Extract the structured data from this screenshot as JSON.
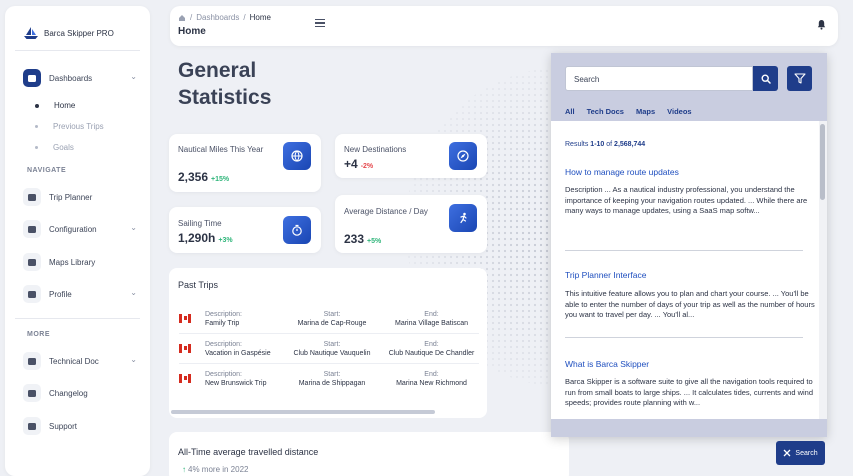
{
  "brand": {
    "name": "Barca Skipper PRO"
  },
  "sidebar": {
    "dashboards": {
      "label": "Dashboards",
      "icon": "dashboard-icon"
    },
    "sub_items": [
      "Home",
      "Previous Trips",
      "Goals"
    ],
    "navigate_section": "NAVIGATE",
    "navigate_items": [
      {
        "label": "Trip Planner",
        "icon": "map-icon"
      },
      {
        "label": "Configuration",
        "icon": "wrench-icon"
      },
      {
        "label": "Maps Library",
        "icon": "library-icon"
      },
      {
        "label": "Profile",
        "icon": "profile-icon"
      }
    ],
    "more_section": "MORE",
    "more_items": [
      {
        "label": "Technical Doc",
        "icon": "rocket-icon"
      },
      {
        "label": "Changelog",
        "icon": "changelog-icon"
      },
      {
        "label": "Support",
        "icon": "support-icon"
      }
    ]
  },
  "header": {
    "breadcrumb": [
      "Dashboards",
      "Home"
    ],
    "separator": "/",
    "page_title": "Home"
  },
  "main": {
    "title_line1": "General",
    "title_line2": "Statistics",
    "stats": [
      {
        "label": "Nautical Miles This Year",
        "value": "2,356",
        "change": "+15%",
        "icon": "globe-icon"
      },
      {
        "label": "New Destinations",
        "value": "+4",
        "change": "-2%",
        "icon": "compass-icon"
      },
      {
        "label": "Sailing Time",
        "value": "1,290h",
        "change": "+3%",
        "icon": "stopwatch-icon"
      },
      {
        "label": "Average Distance / Day",
        "value": "233",
        "change": "+5%",
        "icon": "runner-icon"
      }
    ],
    "past_trips": {
      "title": "Past Trips",
      "desc_label": "Description:",
      "start_label": "Start:",
      "end_label": "End:",
      "rows": [
        {
          "description": "Family Trip",
          "start": "Marina de Cap-Rouge",
          "end": "Marina Village Batiscan"
        },
        {
          "description": "Vacation in Gaspésie",
          "start": "Club Nautique Vauquelin",
          "end": "Club Nautique De Chandler"
        },
        {
          "description": "New Brunswick Trip",
          "start": "Marina de Shippagan",
          "end": "Marina New Richmond"
        }
      ]
    },
    "avg": {
      "title": "All-Time average travelled distance",
      "arrow": "↑",
      "subtitle": "4% more in 2022"
    }
  },
  "search": {
    "input_value": "Search",
    "tabs": [
      "All",
      "Tech Docs",
      "Maps",
      "Videos"
    ],
    "count_prefix": "Results ",
    "count_range": "1-10",
    "count_mid": " of ",
    "count_total": "2,568,744",
    "results": [
      {
        "title": "How to manage route updates",
        "desc": "Description ... As a nautical industry professional, you understand the importance of keeping your navigation routes updated. ... While there are many ways to manage updates, using a SaaS map softw..."
      },
      {
        "title": "Trip Planner Interface",
        "desc": "This intuitive feature allows you to plan and chart your course. ... You'll be able to enter the number of days of your trip as well as the number of hours you want to travel per day. ... You'll al..."
      },
      {
        "title": "What is Barca Skipper",
        "desc": "Barca Skipper is a software suite to give all the navigation tools required to run from small boats to large ships. ... It calculates tides, currents and wind speeds; provides route planning with w..."
      }
    ],
    "close_label": "Search",
    "scroll_position": 0.0
  },
  "colors": {
    "accent": "#1f3d8a",
    "positive": "#2fb57a",
    "negative": "#e5484d",
    "link": "#1f4fbf"
  }
}
